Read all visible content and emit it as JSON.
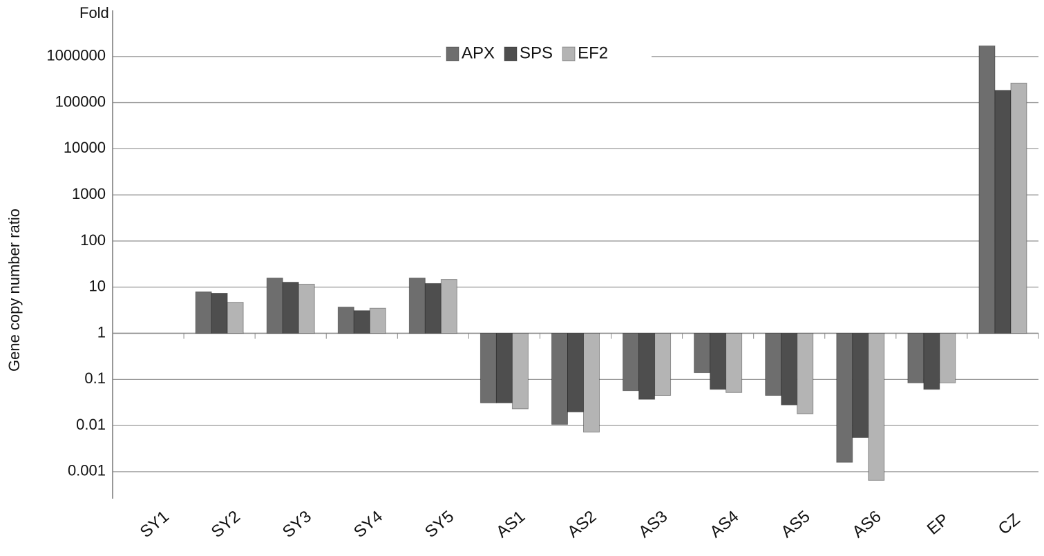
{
  "chart_data": {
    "type": "bar",
    "title": "Fold",
    "y_label": "Gene copy number ratio",
    "log_scale": true,
    "grid": true,
    "legend_position": "top",
    "categories": [
      "SY1",
      "SY2",
      "SY3",
      "SY4",
      "SY5",
      "AS1",
      "AS2",
      "AS3",
      "AS4",
      "AS5",
      "AS6",
      "EP",
      "CZ"
    ],
    "series": [
      {
        "name": "APX",
        "color": "#6e6e6e",
        "values": [
          null,
          7.9,
          15.8,
          3.7,
          15.8,
          0.031,
          0.0106,
          0.057,
          0.14,
          0.045,
          0.0016,
          0.084,
          1700000
        ]
      },
      {
        "name": "SPS",
        "color": "#4e4e4e",
        "values": [
          null,
          7.4,
          12.8,
          3.1,
          12,
          0.031,
          0.0197,
          0.037,
          0.061,
          0.028,
          0.0055,
          0.061,
          185000
        ]
      },
      {
        "name": "EF2",
        "color": "#b4b4b4",
        "values": [
          null,
          4.7,
          11.6,
          3.5,
          14.7,
          0.023,
          0.0072,
          0.045,
          0.052,
          0.018,
          0.00065,
          0.084,
          265000
        ]
      }
    ],
    "ylim": [
      0.00026,
      10000000
    ],
    "yticks": [
      0.001,
      0.01,
      0.1,
      1,
      10,
      100,
      1000,
      10000,
      100000,
      1000000
    ]
  }
}
